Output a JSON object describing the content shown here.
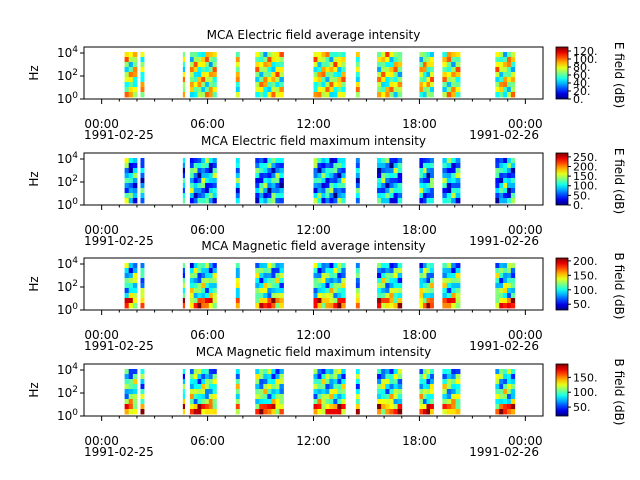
{
  "figure": {
    "background": "#ffffff"
  },
  "chart_data": [
    {
      "type": "heatmap",
      "title": "MCA  Electric field average intensity",
      "ylabel": "Hz",
      "yscale": "log",
      "y_ticks": [
        "10^4",
        "10^2",
        "10^0"
      ],
      "x_ticks": [
        "00:00",
        "06:00",
        "12:00",
        "18:00",
        "00:00"
      ],
      "x_dates": [
        "1991-02-25",
        "1991-02-26"
      ],
      "x_range_hours": [
        -1,
        25
      ],
      "colorbar": {
        "label": "E field (dB)",
        "range": [
          0,
          130
        ],
        "ticks": [
          0,
          20,
          40,
          60,
          80,
          100,
          120
        ]
      },
      "colormap": "jet",
      "data_intervals_hours": [
        [
          1.3,
          2.0
        ],
        [
          2.2,
          2.4
        ],
        [
          4.6,
          4.7
        ],
        [
          5.0,
          6.5
        ],
        [
          7.6,
          7.8
        ],
        [
          8.7,
          10.3
        ],
        [
          12.0,
          13.8
        ],
        [
          14.4,
          14.6
        ],
        [
          15.6,
          17.0
        ],
        [
          18.0,
          18.8
        ],
        [
          19.3,
          20.3
        ],
        [
          22.3,
          23.4
        ]
      ],
      "dominant_level": 0.55
    },
    {
      "type": "heatmap",
      "title": "MCA  Electric field maximum intensity",
      "ylabel": "Hz",
      "yscale": "log",
      "y_ticks": [
        "10^4",
        "10^2",
        "10^0"
      ],
      "x_ticks": [
        "00:00",
        "06:00",
        "12:00",
        "18:00",
        "00:00"
      ],
      "x_dates": [
        "1991-02-25",
        "1991-02-26"
      ],
      "x_range_hours": [
        -1,
        25
      ],
      "colorbar": {
        "label": "E field (dB)",
        "range": [
          0,
          270
        ],
        "ticks": [
          0,
          50,
          100,
          150,
          200,
          250
        ]
      },
      "colormap": "jet",
      "data_intervals_hours": [
        [
          1.3,
          2.0
        ],
        [
          2.2,
          2.4
        ],
        [
          4.6,
          4.7
        ],
        [
          5.0,
          6.5
        ],
        [
          7.6,
          7.8
        ],
        [
          8.7,
          10.3
        ],
        [
          12.0,
          13.8
        ],
        [
          14.4,
          14.6
        ],
        [
          15.6,
          17.0
        ],
        [
          18.0,
          18.8
        ],
        [
          19.3,
          20.3
        ],
        [
          22.3,
          23.4
        ]
      ],
      "dominant_level": 0.38
    },
    {
      "type": "heatmap",
      "title": "MCA  Magnetic field average intensity",
      "ylabel": "Hz",
      "yscale": "log",
      "y_ticks": [
        "10^4",
        "10^2",
        "10^0"
      ],
      "x_ticks": [
        "00:00",
        "06:00",
        "12:00",
        "18:00",
        "00:00"
      ],
      "x_dates": [
        "1991-02-25",
        "1991-02-26"
      ],
      "x_range_hours": [
        -1,
        25
      ],
      "colorbar": {
        "label": "B field (dB)",
        "range": [
          30,
          210
        ],
        "ticks": [
          50,
          100,
          150,
          200
        ]
      },
      "colormap": "jet",
      "data_intervals_hours": [
        [
          1.3,
          2.0
        ],
        [
          2.2,
          2.4
        ],
        [
          4.6,
          4.7
        ],
        [
          5.0,
          6.5
        ],
        [
          7.6,
          7.8
        ],
        [
          8.7,
          10.3
        ],
        [
          12.0,
          13.8
        ],
        [
          14.4,
          14.6
        ],
        [
          15.6,
          17.0
        ],
        [
          18.0,
          18.8
        ],
        [
          19.3,
          20.3
        ],
        [
          22.3,
          23.4
        ]
      ],
      "dominant_level": 0.5
    },
    {
      "type": "heatmap",
      "title": "MCA  Magnetic field maximum intensity",
      "ylabel": "Hz",
      "yscale": "log",
      "y_ticks": [
        "10^4",
        "10^2",
        "10^0"
      ],
      "x_ticks": [
        "00:00",
        "06:00",
        "12:00",
        "18:00",
        "00:00"
      ],
      "x_dates": [
        "1991-02-25",
        "1991-02-26"
      ],
      "x_range_hours": [
        -1,
        25
      ],
      "colorbar": {
        "label": "B field (dB)",
        "range": [
          20,
          195
        ],
        "ticks": [
          50,
          100,
          150
        ]
      },
      "colormap": "jet",
      "data_intervals_hours": [
        [
          1.3,
          2.0
        ],
        [
          2.2,
          2.4
        ],
        [
          4.6,
          4.7
        ],
        [
          5.0,
          6.5
        ],
        [
          7.6,
          7.8
        ],
        [
          8.7,
          10.3
        ],
        [
          12.0,
          13.8
        ],
        [
          14.4,
          14.6
        ],
        [
          15.6,
          17.0
        ],
        [
          18.0,
          18.8
        ],
        [
          19.3,
          20.3
        ],
        [
          22.3,
          23.4
        ]
      ],
      "dominant_level": 0.52
    }
  ]
}
